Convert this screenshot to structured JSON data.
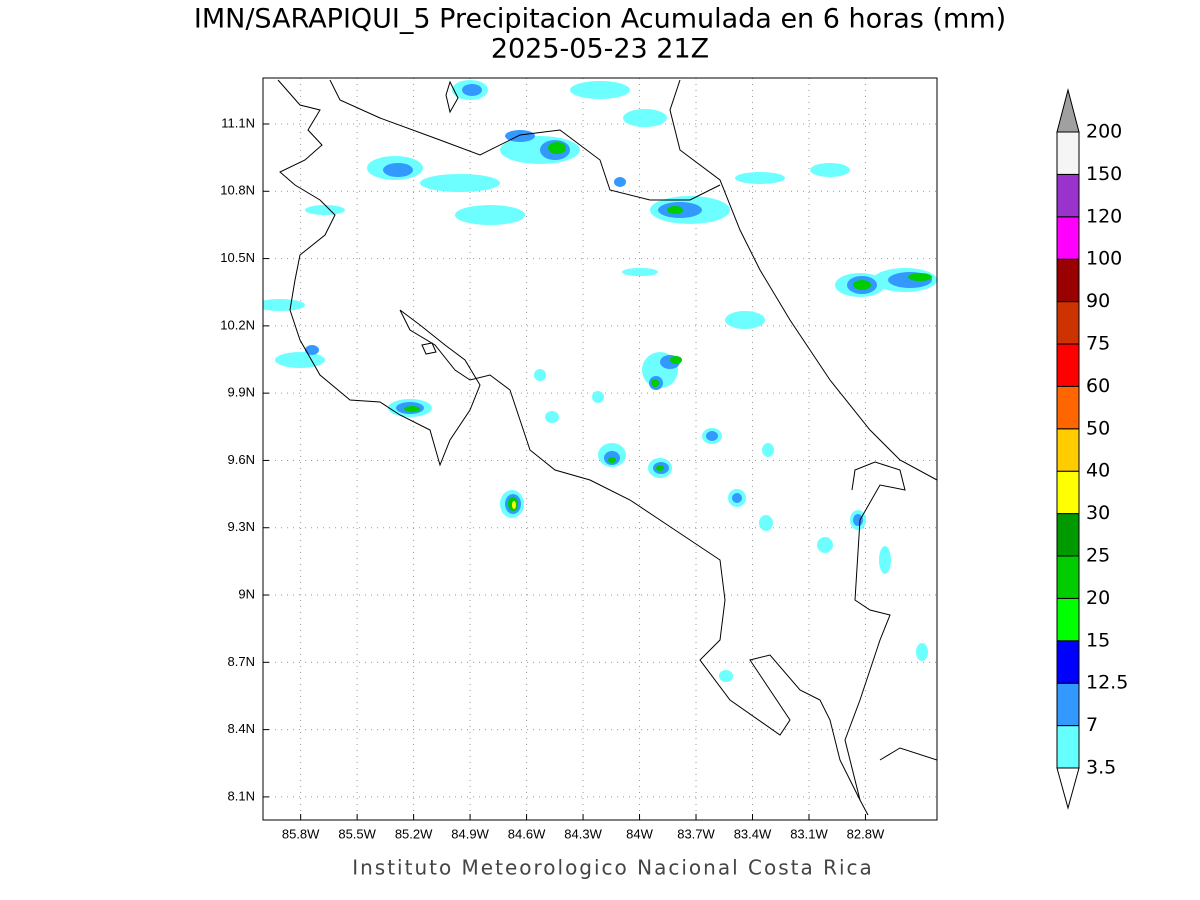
{
  "title": "IMN/SARAPIQUI_5 Precipitacion Acumulada en 6 horas (mm)",
  "subtitle": "2025-05-23 21Z",
  "footer": "Instituto Meteorologico Nacional Costa Rica",
  "map": {
    "xlim": [
      -86.0,
      -82.42
    ],
    "ylim": [
      7.997,
      11.305
    ],
    "xticks": [
      {
        "value": -85.8,
        "label": "85.8W"
      },
      {
        "value": -85.5,
        "label": "85.5W"
      },
      {
        "value": -85.2,
        "label": "85.2W"
      },
      {
        "value": -84.9,
        "label": "84.9W"
      },
      {
        "value": -84.6,
        "label": "84.6W"
      },
      {
        "value": -84.3,
        "label": "84.3W"
      },
      {
        "value": -84.0,
        "label": "84W"
      },
      {
        "value": -83.7,
        "label": "83.7W"
      },
      {
        "value": -83.4,
        "label": "83.4W"
      },
      {
        "value": -83.1,
        "label": "83.1W"
      },
      {
        "value": -82.8,
        "label": "82.8W"
      }
    ],
    "yticks": [
      {
        "value": 8.1,
        "label": "8.1N"
      },
      {
        "value": 8.4,
        "label": "8.4N"
      },
      {
        "value": 8.7,
        "label": "8.7N"
      },
      {
        "value": 9.0,
        "label": "9N"
      },
      {
        "value": 9.3,
        "label": "9.3N"
      },
      {
        "value": 9.6,
        "label": "9.6N"
      },
      {
        "value": 9.9,
        "label": "9.9N"
      },
      {
        "value": 10.2,
        "label": "10.2N"
      },
      {
        "value": 10.5,
        "label": "10.5N"
      },
      {
        "value": 10.8,
        "label": "10.8N"
      },
      {
        "value": 11.1,
        "label": "11.1N"
      }
    ],
    "grid": true
  },
  "colorbar": {
    "labels": [
      3.5,
      7,
      12.5,
      15,
      20,
      25,
      30,
      40,
      50,
      60,
      75,
      90,
      100,
      120,
      150,
      200
    ],
    "colors": [
      "#66ffff",
      "#3399ff",
      "#0000ff",
      "#00ff00",
      "#00cc00",
      "#009900",
      "#ffff00",
      "#ffcc00",
      "#ff6600",
      "#ff0000",
      "#cc3300",
      "#990000",
      "#ff00ff",
      "#9933cc",
      "#f5f5f5"
    ],
    "over_color": "#a0a0a0",
    "under_color": "#ffffff"
  }
}
